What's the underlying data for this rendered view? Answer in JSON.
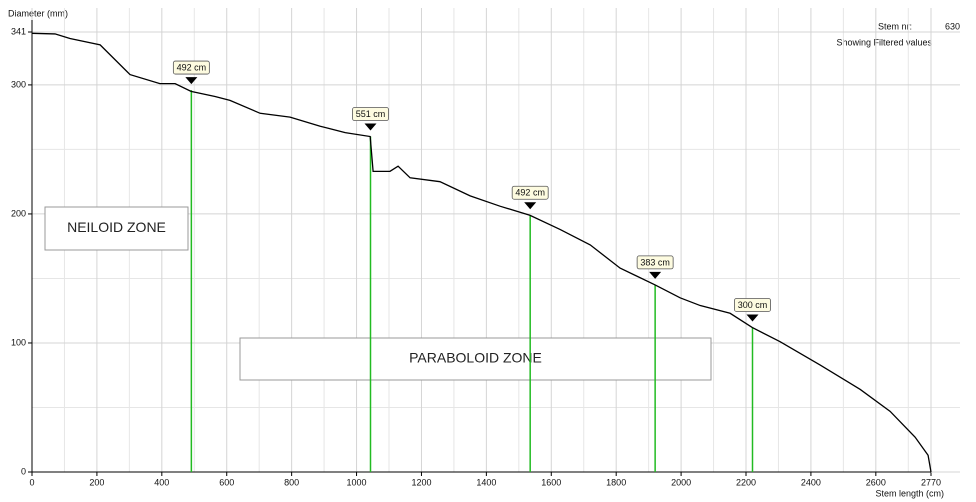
{
  "chart_data": {
    "type": "line",
    "y_label": "Diameter (mm)",
    "x_label": "Stem length (cm)",
    "stem_label": "Stem nr:",
    "stem_number": "630",
    "filter_note": "Showing Filtered values",
    "zones": [
      "NEILOID ZONE",
      "PARABOLOID  ZONE"
    ],
    "xlim": [
      0,
      2770
    ],
    "ylim": [
      0,
      341
    ],
    "xticks": [
      0,
      200,
      400,
      600,
      800,
      1000,
      1200,
      1400,
      1600,
      1800,
      2000,
      2200,
      2400,
      2600,
      2770
    ],
    "yticks": [
      0,
      100,
      200,
      300,
      341
    ],
    "xminorticks": [
      100,
      300,
      500,
      700,
      900,
      1100,
      1300,
      1500,
      1700,
      1900,
      2100,
      2300,
      2500,
      2700
    ],
    "yminorticks": [
      50,
      150,
      250
    ],
    "grid": true,
    "series": [
      {
        "name": "Diameter",
        "color": "#000000",
        "x": [
          0,
          71,
          117,
          210,
          302,
          394,
          441,
          490,
          564,
          610,
          703,
          795,
          888,
          965,
          1042,
          1051,
          1103,
          1128,
          1165,
          1257,
          1350,
          1442,
          1534,
          1627,
          1720,
          1812,
          1920,
          1997,
          2059,
          2151,
          2219,
          2305,
          2428,
          2552,
          2644,
          2721,
          2761,
          2770
        ],
        "values": [
          340,
          339.5,
          336,
          331,
          308,
          301,
          301,
          295,
          291,
          288,
          278,
          275,
          268,
          263,
          260,
          233,
          233,
          237,
          228,
          225,
          214,
          206,
          199,
          188,
          176,
          158,
          145,
          135,
          129,
          123,
          112,
          101,
          83,
          64,
          47,
          27,
          13,
          0
        ]
      }
    ],
    "cuts": {
      "color": "#22bb22",
      "x": [
        491,
        1043,
        1535,
        1920,
        2220
      ],
      "values": [
        296,
        260,
        199,
        145,
        112
      ],
      "labels": [
        "492 cm",
        "551 cm",
        "492 cm",
        "383 cm",
        "300 cm"
      ]
    }
  }
}
